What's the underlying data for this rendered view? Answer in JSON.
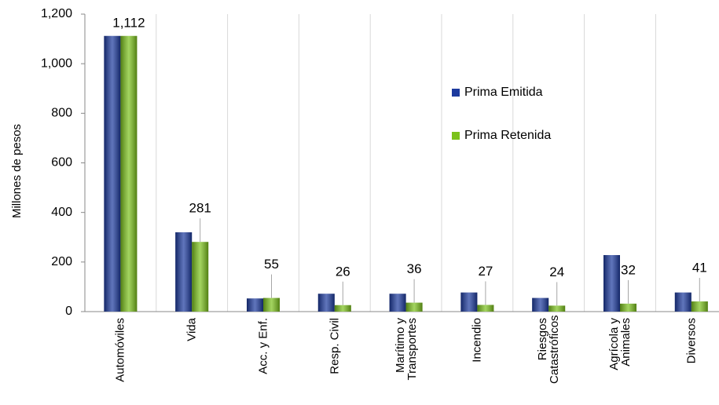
{
  "chart_data": {
    "type": "bar",
    "y_label": "Millones de pesos",
    "categories": [
      "Automóviles",
      "Vida",
      "Acc. y Enf.",
      "Resp. Civil",
      "Marítimo y Transportes",
      "Incendio",
      "Riesgos Catastróficos",
      "Agrícola y Animales",
      "Diversos"
    ],
    "series": [
      {
        "name": "Prima Emitida",
        "color": "#1c3a9e",
        "values": [
          1112,
          320,
          53,
          72,
          72,
          77,
          55,
          228,
          77
        ]
      },
      {
        "name": "Prima Retenida",
        "color": "#7cc21c",
        "values": [
          1112,
          281,
          55,
          26,
          36,
          27,
          24,
          32,
          41
        ],
        "value_labels": [
          "1,112",
          "281",
          "55",
          "26",
          "36",
          "27",
          "24",
          "32",
          "41"
        ]
      }
    ],
    "ylim": [
      0,
      1200
    ],
    "yticks": [
      0,
      200,
      400,
      600,
      800,
      {
        "value": 1000,
        "label": "1,000"
      },
      {
        "value": 1200,
        "label": "1,200"
      }
    ],
    "grid": true,
    "legend": "right"
  }
}
